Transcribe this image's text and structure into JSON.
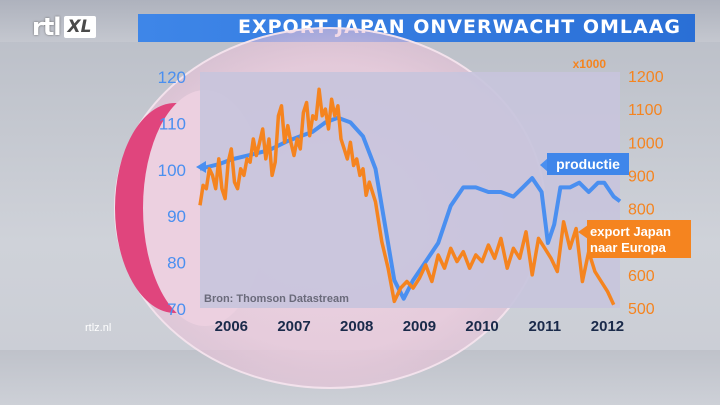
{
  "header": {
    "logo_text": "rtl",
    "logo_badge": "XL",
    "title": "EXPORT JAPAN ONVERWACHT OMLAAG"
  },
  "footer": {
    "site": "rtlz.nl"
  },
  "colors": {
    "production": "#4a8ff0",
    "export": "#f5841f",
    "title_bar": "#3a80e4",
    "plot_bg": "#c9c6dc"
  },
  "chart_data": {
    "type": "line",
    "source": "Bron: Thomson Datastream",
    "left_axis": {
      "ticks": [
        "120",
        "110",
        "100",
        "90",
        "80",
        "70"
      ],
      "values": [
        120,
        110,
        100,
        90,
        80,
        70
      ],
      "range": [
        70,
        120
      ]
    },
    "right_axis": {
      "unit": "x1000",
      "ticks": [
        "1200",
        "1100",
        "1000",
        "900",
        "800",
        "700",
        "600",
        "500"
      ],
      "values": [
        1200,
        1100,
        1000,
        900,
        800,
        700,
        600,
        500
      ],
      "range": [
        500,
        1200
      ]
    },
    "x_axis": {
      "ticks": [
        "2006",
        "2007",
        "2008",
        "2009",
        "2010",
        "2011",
        "2012"
      ],
      "values": [
        2006,
        2007,
        2008,
        2009,
        2010,
        2011,
        2012
      ],
      "range": [
        2005.5,
        2012.2
      ]
    },
    "series": [
      {
        "name": "productie",
        "axis": "left",
        "x": [
          2005.5,
          2005.8,
          2006.0,
          2006.3,
          2006.6,
          2006.9,
          2007.1,
          2007.3,
          2007.5,
          2007.7,
          2007.9,
          2008.1,
          2008.3,
          2008.45,
          2008.6,
          2008.75,
          2008.9,
          2009.1,
          2009.3,
          2009.5,
          2009.7,
          2009.9,
          2010.1,
          2010.3,
          2010.5,
          2010.65,
          2010.8,
          2010.95,
          2011.05,
          2011.15,
          2011.25,
          2011.4,
          2011.55,
          2011.7,
          2011.85,
          2011.95,
          2012.1,
          2012.2
        ],
        "y": [
          100,
          101,
          102,
          103,
          104,
          106,
          107,
          108,
          110,
          111,
          110,
          107,
          100,
          88,
          76,
          72,
          76,
          80,
          84,
          92,
          96,
          96,
          95,
          95,
          94,
          96,
          98,
          95,
          84,
          88,
          96,
          96,
          97,
          95,
          97,
          97,
          94,
          93
        ]
      },
      {
        "name": "export Japan naar Europa",
        "axis": "right",
        "x": [
          2005.5,
          2005.55,
          2005.6,
          2005.65,
          2005.7,
          2005.75,
          2005.8,
          2005.85,
          2005.9,
          2005.95,
          2006.0,
          2006.05,
          2006.1,
          2006.15,
          2006.2,
          2006.25,
          2006.3,
          2006.35,
          2006.4,
          2006.45,
          2006.5,
          2006.55,
          2006.6,
          2006.65,
          2006.7,
          2006.75,
          2006.8,
          2006.85,
          2006.9,
          2006.95,
          2007.0,
          2007.05,
          2007.1,
          2007.15,
          2007.2,
          2007.25,
          2007.3,
          2007.35,
          2007.4,
          2007.45,
          2007.5,
          2007.55,
          2007.6,
          2007.65,
          2007.7,
          2007.75,
          2007.8,
          2007.85,
          2007.9,
          2007.95,
          2008.0,
          2008.05,
          2008.1,
          2008.15,
          2008.2,
          2008.3,
          2008.4,
          2008.5,
          2008.6,
          2008.7,
          2008.8,
          2008.9,
          2009.0,
          2009.1,
          2009.2,
          2009.3,
          2009.4,
          2009.5,
          2009.6,
          2009.7,
          2009.8,
          2009.9,
          2010.0,
          2010.1,
          2010.2,
          2010.3,
          2010.4,
          2010.5,
          2010.6,
          2010.7,
          2010.8,
          2010.9,
          2011.0,
          2011.1,
          2011.2,
          2011.3,
          2011.4,
          2011.5,
          2011.6,
          2011.7,
          2011.8,
          2011.9,
          2012.0,
          2012.1
        ],
        "y": [
          810,
          870,
          860,
          920,
          900,
          860,
          950,
          860,
          830,
          940,
          980,
          880,
          860,
          920,
          900,
          950,
          940,
          1010,
          960,
          1000,
          1040,
          950,
          1010,
          900,
          940,
          1080,
          1110,
          1000,
          1050,
          1000,
          960,
          1010,
          980,
          1090,
          1120,
          1020,
          1080,
          1070,
          1160,
          1080,
          1100,
          1040,
          1130,
          1080,
          1110,
          1010,
          980,
          950,
          1000,
          930,
          950,
          900,
          920,
          840,
          880,
          820,
          700,
          620,
          520,
          560,
          580,
          560,
          590,
          630,
          580,
          660,
          620,
          680,
          640,
          670,
          620,
          660,
          640,
          690,
          650,
          710,
          620,
          680,
          650,
          730,
          600,
          710,
          680,
          650,
          610,
          760,
          680,
          740,
          580,
          670,
          610,
          580,
          550,
          510
        ]
      }
    ]
  }
}
